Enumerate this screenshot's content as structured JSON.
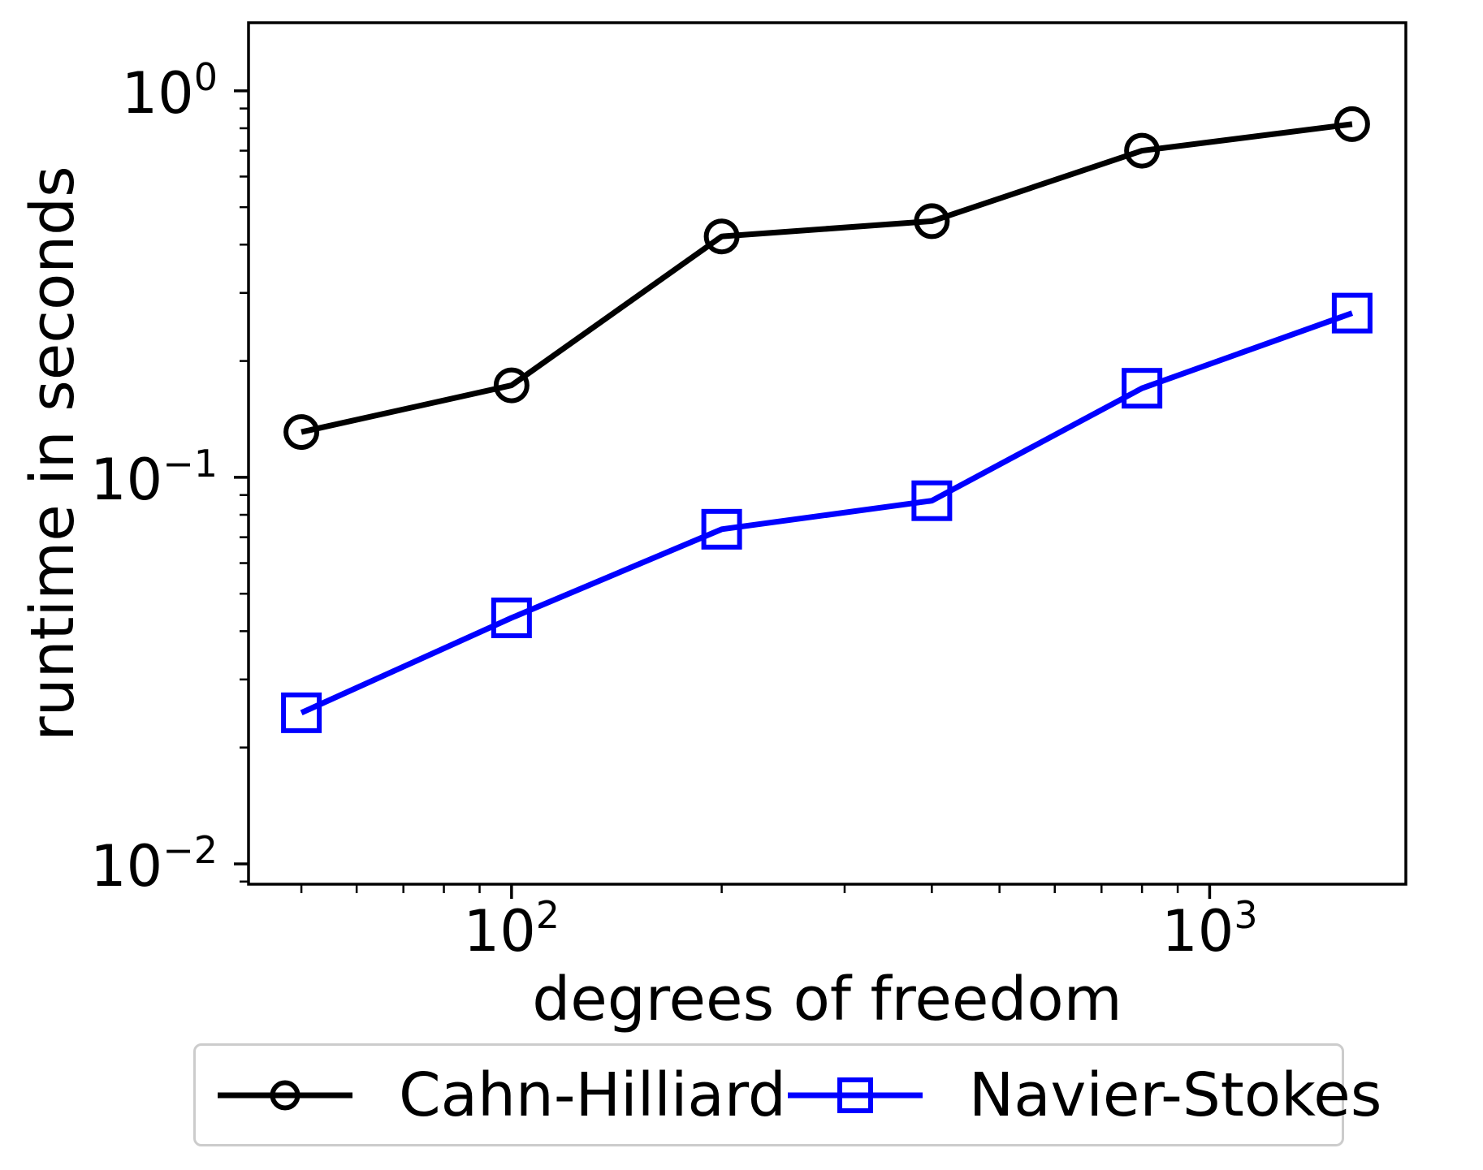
{
  "chart_data": {
    "type": "line",
    "title": "",
    "xlabel": "degrees of freedom",
    "ylabel": "runtime in seconds",
    "x_scale": "log",
    "y_scale": "log",
    "grid": false,
    "legend_position": "bottom-outside",
    "xlim": [
      42,
      1910
    ],
    "ylim": [
      0.00886,
      1.5
    ],
    "x": [
      50,
      100,
      200,
      400,
      800,
      1600
    ],
    "series": [
      {
        "name": "Cahn-Hilliard",
        "color": "#000000",
        "marker": "circle",
        "values": [
          0.131,
          0.173,
          0.42,
          0.46,
          0.7,
          0.82
        ]
      },
      {
        "name": "Navier-Stokes",
        "color": "#0000ff",
        "marker": "square",
        "values": [
          0.0246,
          0.0433,
          0.0734,
          0.087,
          0.17,
          0.266
        ]
      }
    ],
    "x_major_ticks": [
      {
        "value": 100,
        "base": "10",
        "exp": "2"
      },
      {
        "value": 1000,
        "base": "10",
        "exp": "3"
      }
    ],
    "y_major_ticks": [
      {
        "value": 1,
        "base": "10",
        "exp": "0"
      },
      {
        "value": 0.1,
        "base": "10",
        "exp": "−1"
      },
      {
        "value": 0.01,
        "base": "10",
        "exp": "−2"
      }
    ],
    "x_minor_ticks": [
      50,
      60,
      70,
      80,
      90,
      200,
      300,
      400,
      500,
      600,
      700,
      800,
      900
    ],
    "y_minor_ticks": [
      0.9,
      0.8,
      0.7,
      0.6,
      0.5,
      0.4,
      0.3,
      0.2,
      0.09,
      0.08,
      0.07,
      0.06,
      0.05,
      0.04,
      0.03,
      0.02,
      0.009
    ]
  },
  "colors": {
    "axis": "#000000",
    "text": "#000000",
    "legend_border": "#cccccc",
    "background": "#ffffff"
  }
}
